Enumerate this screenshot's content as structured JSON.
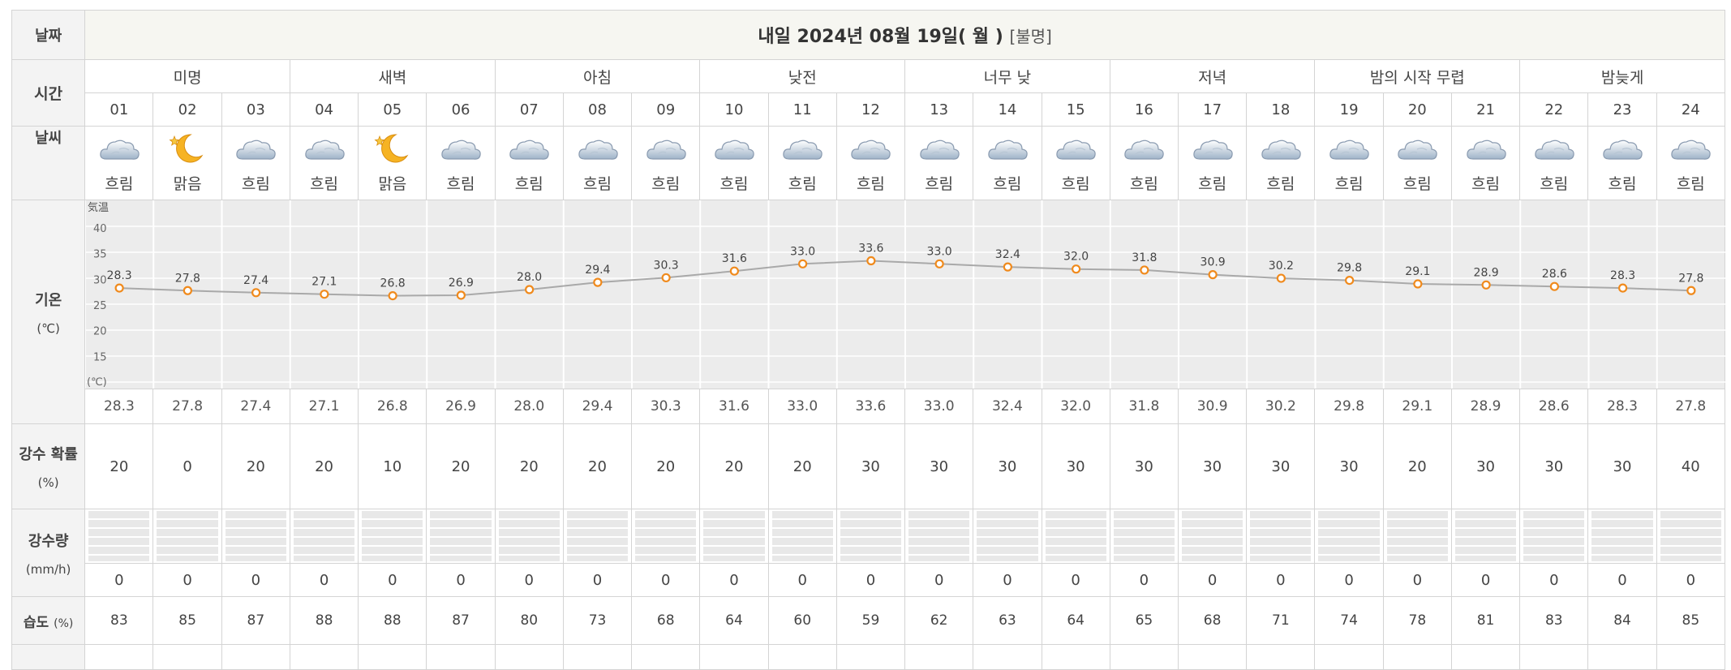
{
  "labels": {
    "date": "날짜",
    "time": "시간",
    "weather": "날씨",
    "temp": "기온",
    "temp_unit": "(℃)",
    "pop": "강수 확률",
    "pop_unit": "(%)",
    "rain": "강수량",
    "rain_unit": "(mm/h)",
    "humidity": "습도",
    "humidity_unit": "(%)"
  },
  "date_title": "내일 2024년 08월 19일(",
  "date_day": "월",
  "date_close": ")",
  "date_sub": "[불명]",
  "periods": [
    "미명",
    "새벽",
    "아침",
    "낮전",
    "너무 낮",
    "저녁",
    "밤의 시작 무렵",
    "밤늦게"
  ],
  "hours": [
    "01",
    "02",
    "03",
    "04",
    "05",
    "06",
    "07",
    "08",
    "09",
    "10",
    "11",
    "12",
    "13",
    "14",
    "15",
    "16",
    "17",
    "18",
    "19",
    "20",
    "21",
    "22",
    "23",
    "24"
  ],
  "weather_labels": [
    "흐림",
    "맑음",
    "흐림",
    "흐림",
    "맑음",
    "흐림",
    "흐림",
    "흐림",
    "흐림",
    "흐림",
    "흐림",
    "흐림",
    "흐림",
    "흐림",
    "흐림",
    "흐림",
    "흐림",
    "흐림",
    "흐림",
    "흐림",
    "흐림",
    "흐림",
    "흐림",
    "흐림"
  ],
  "weather_icons": [
    "cloudy-icon",
    "clear-night-icon",
    "cloudy-icon",
    "cloudy-icon",
    "clear-night-icon",
    "cloudy-icon",
    "cloudy-icon",
    "cloudy-icon",
    "cloudy-icon",
    "cloudy-icon",
    "cloudy-icon",
    "cloudy-icon",
    "cloudy-icon",
    "cloudy-icon",
    "cloudy-icon",
    "cloudy-icon",
    "cloudy-icon",
    "cloudy-icon",
    "cloudy-icon",
    "cloudy-icon",
    "cloudy-icon",
    "cloudy-icon",
    "cloudy-icon",
    "cloudy-icon"
  ],
  "temps_row": [
    "28.3",
    "27.8",
    "27.4",
    "27.1",
    "26.8",
    "26.9",
    "28.0",
    "29.4",
    "30.3",
    "31.6",
    "33.0",
    "33.6",
    "33.0",
    "32.4",
    "32.0",
    "31.8",
    "30.9",
    "30.2",
    "29.8",
    "29.1",
    "28.9",
    "28.6",
    "28.3",
    "27.8"
  ],
  "pop": [
    "20",
    "0",
    "20",
    "20",
    "10",
    "20",
    "20",
    "20",
    "20",
    "20",
    "20",
    "30",
    "30",
    "30",
    "30",
    "30",
    "30",
    "30",
    "30",
    "20",
    "30",
    "30",
    "30",
    "40"
  ],
  "rain": [
    "0",
    "0",
    "0",
    "0",
    "0",
    "0",
    "0",
    "0",
    "0",
    "0",
    "0",
    "0",
    "0",
    "0",
    "0",
    "0",
    "0",
    "0",
    "0",
    "0",
    "0",
    "0",
    "0",
    "0"
  ],
  "humidity": [
    "83",
    "85",
    "87",
    "88",
    "88",
    "87",
    "80",
    "73",
    "68",
    "64",
    "60",
    "59",
    "62",
    "63",
    "64",
    "65",
    "68",
    "71",
    "74",
    "78",
    "81",
    "83",
    "84",
    "85"
  ],
  "chart_data": {
    "type": "line",
    "title": "気温",
    "xlabel": "",
    "ylabel": "(℃)",
    "x": [
      "01",
      "02",
      "03",
      "04",
      "05",
      "06",
      "07",
      "08",
      "09",
      "10",
      "11",
      "12",
      "13",
      "14",
      "15",
      "16",
      "17",
      "18",
      "19",
      "20",
      "21",
      "22",
      "23",
      "24"
    ],
    "ylim": [
      10,
      40
    ],
    "yticks": [
      "40",
      "35",
      "30",
      "25",
      "20",
      "15"
    ],
    "grid": true,
    "series": [
      {
        "values": [
          28.3,
          27.8,
          27.4,
          27.1,
          26.8,
          26.9,
          28.0,
          29.4,
          30.3,
          31.6,
          33.0,
          33.6,
          33.0,
          32.4,
          32.0,
          31.8,
          30.9,
          30.2,
          29.8,
          29.1,
          28.9,
          28.6,
          28.3,
          27.8
        ]
      }
    ],
    "data_labels": [
      "28.3",
      "27.8",
      "27.4",
      "27.1",
      "26.8",
      "26.9",
      "28.0",
      "29.4",
      "30.3",
      "31.6",
      "33.0",
      "33.6",
      "33.0",
      "32.4",
      "32.0",
      "31.8",
      "30.9",
      "30.2",
      "29.8",
      "29.1",
      "28.9",
      "28.6",
      "28.3",
      "27.8"
    ],
    "colors": {
      "line": "#a9a9a9",
      "marker": "#f08a1c",
      "band": "#ececec",
      "grid": "#ffffff"
    }
  }
}
